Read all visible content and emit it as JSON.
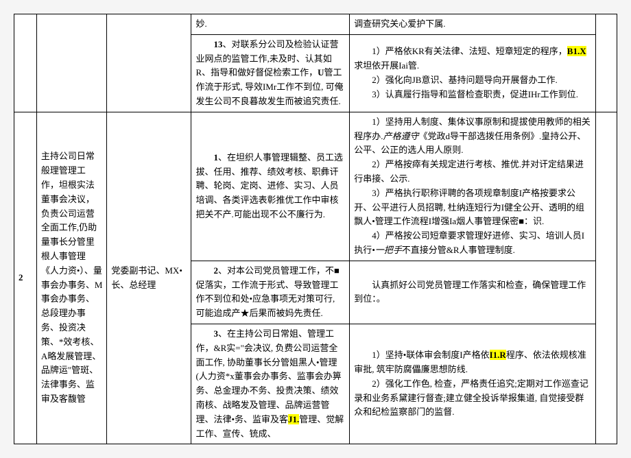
{
  "rows": [
    {
      "risk": "妙.",
      "measure": "调查研究关心爱护下属."
    },
    {
      "risk_pre": "13",
      "risk_body": "、对联系分公司及检验认证营业网点的监管工作,未及时、认其如R、指导和做好督促检索工作，",
      "risk_u": "U",
      "risk_tail": "管工作流于形式, 导效IMr工作不到位, 可俺发生公司不良暮故发生而被追究责任.",
      "m1_pre": "1）严格依KR有关法律、法短、短章短定的程序，",
      "m1_hl": "B1.X",
      "m1_tail": "求坦依开展Iai管.",
      "m2": "2）强化向JB意识、基持问题导向开展督办工作.",
      "m3": "3）认真履行指导和监督检查职责，促进IHr工作到位."
    },
    {
      "num": "2",
      "role": "主持公司日常般理管理工作，坦根实法董事会决议，负责公司运营全面工作,仍助量事长分管里根人事管理《人力资•）、量事会办事务、M事会办事务、总段理办事务、投资决策、*效考核、A略发展管理、品牌运\"管斑、法律事务、监审及客馥管",
      "title": "党委副书记、MX•长、总经理",
      "sub": [
        {
          "risk_pre": "1",
          "risk_body": "、在坦织人事管理辑整、员工选拔、任用、推荐、绩效考核、职彝讦聘、轮岗、定岗、进修、实习、人员培调、各类评选表彰推优工作中审核把关不产.可能出现不公不廉行为.",
          "m1": "1）坚持用人制度、集体议事原制和提拔使用教师的相关程序办.",
          "m1i": "产格遵守",
          "m1t": "《党政d导干部选拨任用条例》.皇持公开、公平、公正的选人用人原则.",
          "m2": "2）严格按瘁有关规定进行考核、推优.并对讦定结果进行串接、公示.",
          "m3": "3）严格执行职称评聘的各项规章制度I产格按要求公开、公平进行人员招聘, 杜纳连短行为I健全公开、透明的组飘人•管理工作流程I增强Ia烟人事管理保密■：识.",
          "m4": "4）严格按公司短章要求管理好进修、实习、培训人员I执行",
          "m4i": "•一把手",
          "m4t": "不直接分管&R人事管理制度."
        },
        {
          "risk_pre": "2",
          "risk_body": "、对本公司党员管理工作，不■促落实，工作流于形式、导致管理工作不到位和处•应急事项无对策可行, 可能迨成产★后果而被妈先责任.",
          "m": "认真抓好公司党员管理工作落实和检查，确保管理工作到位：。"
        },
        {
          "risk_pre": "3",
          "risk_body": "、在主持公司日常姐、管理工作，&R实=\"会决议, 负费公司运营全面工作, 协助董事长分管姐黑人•管理 (人力资*x董事会办事务、监事会办箅务、总金理办不务、投贵决策、绩效南核、战略发及管理、品牌运营管理、法律•务、监审及客",
          "risk_hl": "J1.",
          "risk_tail": "管理、觉解工作、宣传、铳成、",
          "m1_pre": "1）坚持•联体审会制度I产格依",
          "m1_hl": "I1.R",
          "m1_tail": "程序、依法依规核准审批, 筑牢防腐儡廉思想防线.",
          "m2": "2）强化工作色, 检查，严格责任追究;定期对工作巡查记录和业务系黛建行督查;建立健全投诉举报集道, 自觉接受群众和纪检监察部门的监督."
        }
      ]
    }
  ]
}
